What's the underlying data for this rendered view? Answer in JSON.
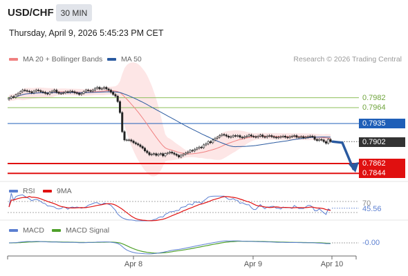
{
  "header": {
    "pair": "USD/CHF",
    "timeframe": "30 MIN",
    "timestamp": "Thursday, April 9, 2026 5:45:23 PM CET"
  },
  "legend_main": {
    "ma20": "MA 20 + Bollinger Bands",
    "ma50": "MA 50"
  },
  "credit": "Research © 2026 Trading Central",
  "legend_rsi": {
    "rsi": "RSI",
    "ma9": "9MA"
  },
  "legend_macd": {
    "macd": "MACD",
    "signal": "MACD Signal"
  },
  "colors": {
    "ma20": "#f08080",
    "bands": "#fde3e3",
    "ma50": "#2a5aa0",
    "resistance": "#8dbf5a",
    "pivot_tag": "#1f5fb8",
    "support": "#e01010",
    "rsi": "#5b7fd1",
    "rsi_ma": "#e01010",
    "macd": "#5b7fd1",
    "macd_signal": "#4ea02a",
    "arrow": "#2a5aa0",
    "last_tag": "#333333"
  },
  "chart_data": [
    {
      "type": "candlestick",
      "title": "USD/CHF",
      "x_ticks": [
        "Apr 8",
        "Apr 9",
        "Apr 10"
      ],
      "ylim": [
        0.7835,
        0.8005
      ],
      "levels": [
        {
          "label": "0.7982",
          "value": 0.7982,
          "kind": "resistance"
        },
        {
          "label": "0.7964",
          "value": 0.7964,
          "kind": "resistance"
        },
        {
          "label": "0.7935",
          "value": 0.7935,
          "kind": "pivot"
        },
        {
          "label": "0.7862",
          "value": 0.7862,
          "kind": "support"
        },
        {
          "label": "0.7844",
          "value": 0.7844,
          "kind": "support"
        }
      ],
      "last_price": {
        "label": "0.7902",
        "value": 0.7902
      },
      "close": [
        0.7981,
        0.7984,
        0.7983,
        0.7987,
        0.799,
        0.7993,
        0.7996,
        0.7995,
        0.7994,
        0.7993,
        0.7991,
        0.7994,
        0.7996,
        0.7995,
        0.7993,
        0.7992,
        0.799,
        0.7989,
        0.7992,
        0.7994,
        0.7996,
        0.7992,
        0.799,
        0.799,
        0.7991,
        0.7993,
        0.7992,
        0.7994,
        0.7993,
        0.7991,
        0.799,
        0.7988,
        0.799,
        0.7993,
        0.7996,
        0.7995,
        0.7994,
        0.7996,
        0.7999,
        0.8001,
        0.7998,
        0.7999,
        0.8001,
        0.7998,
        0.7996,
        0.7992,
        0.7988,
        0.7985,
        0.7975,
        0.7955,
        0.792,
        0.7905,
        0.7905,
        0.7905,
        0.7903,
        0.79,
        0.7898,
        0.7896,
        0.7893,
        0.789,
        0.7885,
        0.7882,
        0.7878,
        0.7879,
        0.788,
        0.7877,
        0.7879,
        0.788,
        0.7876,
        0.788,
        0.7881,
        0.7883,
        0.7881,
        0.7879,
        0.7877,
        0.7874,
        0.7877,
        0.7879,
        0.7881,
        0.7883,
        0.7886,
        0.7885,
        0.7888,
        0.789,
        0.7892,
        0.7891,
        0.7896,
        0.7898,
        0.7902,
        0.79,
        0.7905,
        0.7908,
        0.791,
        0.7913,
        0.7915,
        0.7914,
        0.7912,
        0.791,
        0.7911,
        0.7913,
        0.7912,
        0.7913,
        0.791,
        0.7909,
        0.7911,
        0.7912,
        0.7914,
        0.7912,
        0.7911,
        0.791,
        0.7912,
        0.7914,
        0.7911,
        0.791,
        0.7912,
        0.7913,
        0.7911,
        0.791,
        0.7909,
        0.791,
        0.7911,
        0.7912,
        0.791,
        0.7909,
        0.7911,
        0.7912,
        0.7913,
        0.791,
        0.791,
        0.7911,
        0.7909,
        0.791,
        0.7911,
        0.7912,
        0.7911,
        0.7906,
        0.7904,
        0.7906,
        0.7905,
        0.7902,
        0.7899,
        0.7906,
        0.7902
      ],
      "forecast": [
        0.7902,
        0.79,
        0.7862
      ],
      "rsi": {
        "ylim": [
          0,
          100
        ],
        "levels": [
          {
            "label": "70",
            "value": 70
          },
          {
            "label": "30",
            "value": 30
          }
        ],
        "last": {
          "label": "45.56",
          "value": 45.56
        }
      },
      "macd": {
        "last": {
          "label": "-0.00",
          "value": 0.0
        }
      }
    }
  ]
}
